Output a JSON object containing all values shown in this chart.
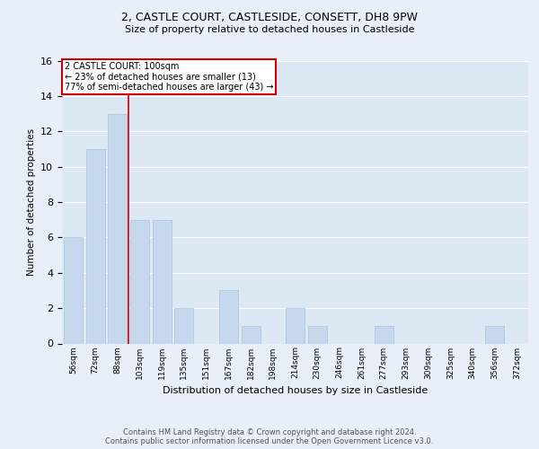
{
  "title_line1": "2, CASTLE COURT, CASTLESIDE, CONSETT, DH8 9PW",
  "title_line2": "Size of property relative to detached houses in Castleside",
  "xlabel": "Distribution of detached houses by size in Castleside",
  "ylabel": "Number of detached properties",
  "categories": [
    "56sqm",
    "72sqm",
    "88sqm",
    "103sqm",
    "119sqm",
    "135sqm",
    "151sqm",
    "167sqm",
    "182sqm",
    "198sqm",
    "214sqm",
    "230sqm",
    "246sqm",
    "261sqm",
    "277sqm",
    "293sqm",
    "309sqm",
    "325sqm",
    "340sqm",
    "356sqm",
    "372sqm"
  ],
  "values": [
    6,
    11,
    13,
    7,
    7,
    2,
    0,
    3,
    1,
    0,
    2,
    1,
    0,
    0,
    1,
    0,
    0,
    0,
    0,
    1,
    0
  ],
  "bar_color": "#c5d8ed",
  "bar_edge_color": "#a8c4dc",
  "annotation_text": "2 CASTLE COURT: 100sqm\n← 23% of detached houses are smaller (13)\n77% of semi-detached houses are larger (43) →",
  "annotation_box_color": "#ffffff",
  "annotation_box_edge_color": "#cc0000",
  "ylim": [
    0,
    16
  ],
  "yticks": [
    0,
    2,
    4,
    6,
    8,
    10,
    12,
    14,
    16
  ],
  "background_color": "#e8eff8",
  "plot_background_color": "#dce8f4",
  "footer_text": "Contains HM Land Registry data © Crown copyright and database right 2024.\nContains public sector information licensed under the Open Government Licence v3.0.",
  "red_line_color": "#cc0000",
  "grid_color": "#ffffff"
}
